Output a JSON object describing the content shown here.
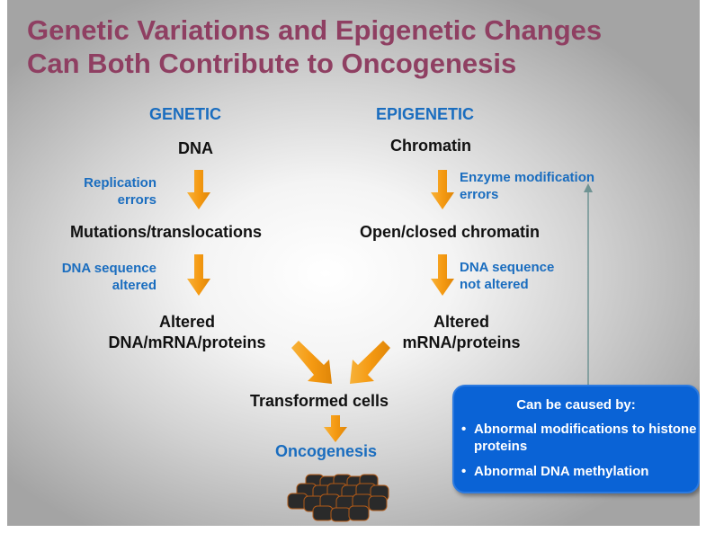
{
  "title": {
    "line1": "Genetic Variations and Epigenetic Changes",
    "line2": "Can Both Contribute to Oncogenesis"
  },
  "genetic": {
    "heading": "GENETIC",
    "start": "DNA",
    "note1": [
      "Replication",
      "errors"
    ],
    "middle": "Mutations/translocations",
    "note2": [
      "DNA sequence",
      "altered"
    ],
    "result": [
      "Altered",
      "DNA/mRNA/proteins"
    ]
  },
  "epigenetic": {
    "heading": "EPIGENETIC",
    "start": "Chromatin",
    "note1": [
      "Enzyme modification",
      "errors"
    ],
    "middle": "Open/closed chromatin",
    "note2": [
      "DNA sequence",
      "not altered"
    ],
    "result": [
      "Altered",
      "mRNA/proteins"
    ]
  },
  "convergence": "Transformed cells",
  "outcome": "Oncogenesis",
  "callout": {
    "heading": "Can be caused by:",
    "items": [
      "Abnormal modifications to histone proteins",
      "Abnormal DNA methylation"
    ]
  },
  "colors": {
    "title": "#8f3f62",
    "blue_text": "#1a6dbf",
    "arrow": "#f59a12",
    "callout_fill": "#0a63d6",
    "connector": "#6f9393",
    "cells": "#2a2a2a"
  },
  "icons": [
    "down-arrow-icon",
    "diagonal-arrow-icon",
    "connector-arrow-icon",
    "cancer-cells-icon"
  ]
}
